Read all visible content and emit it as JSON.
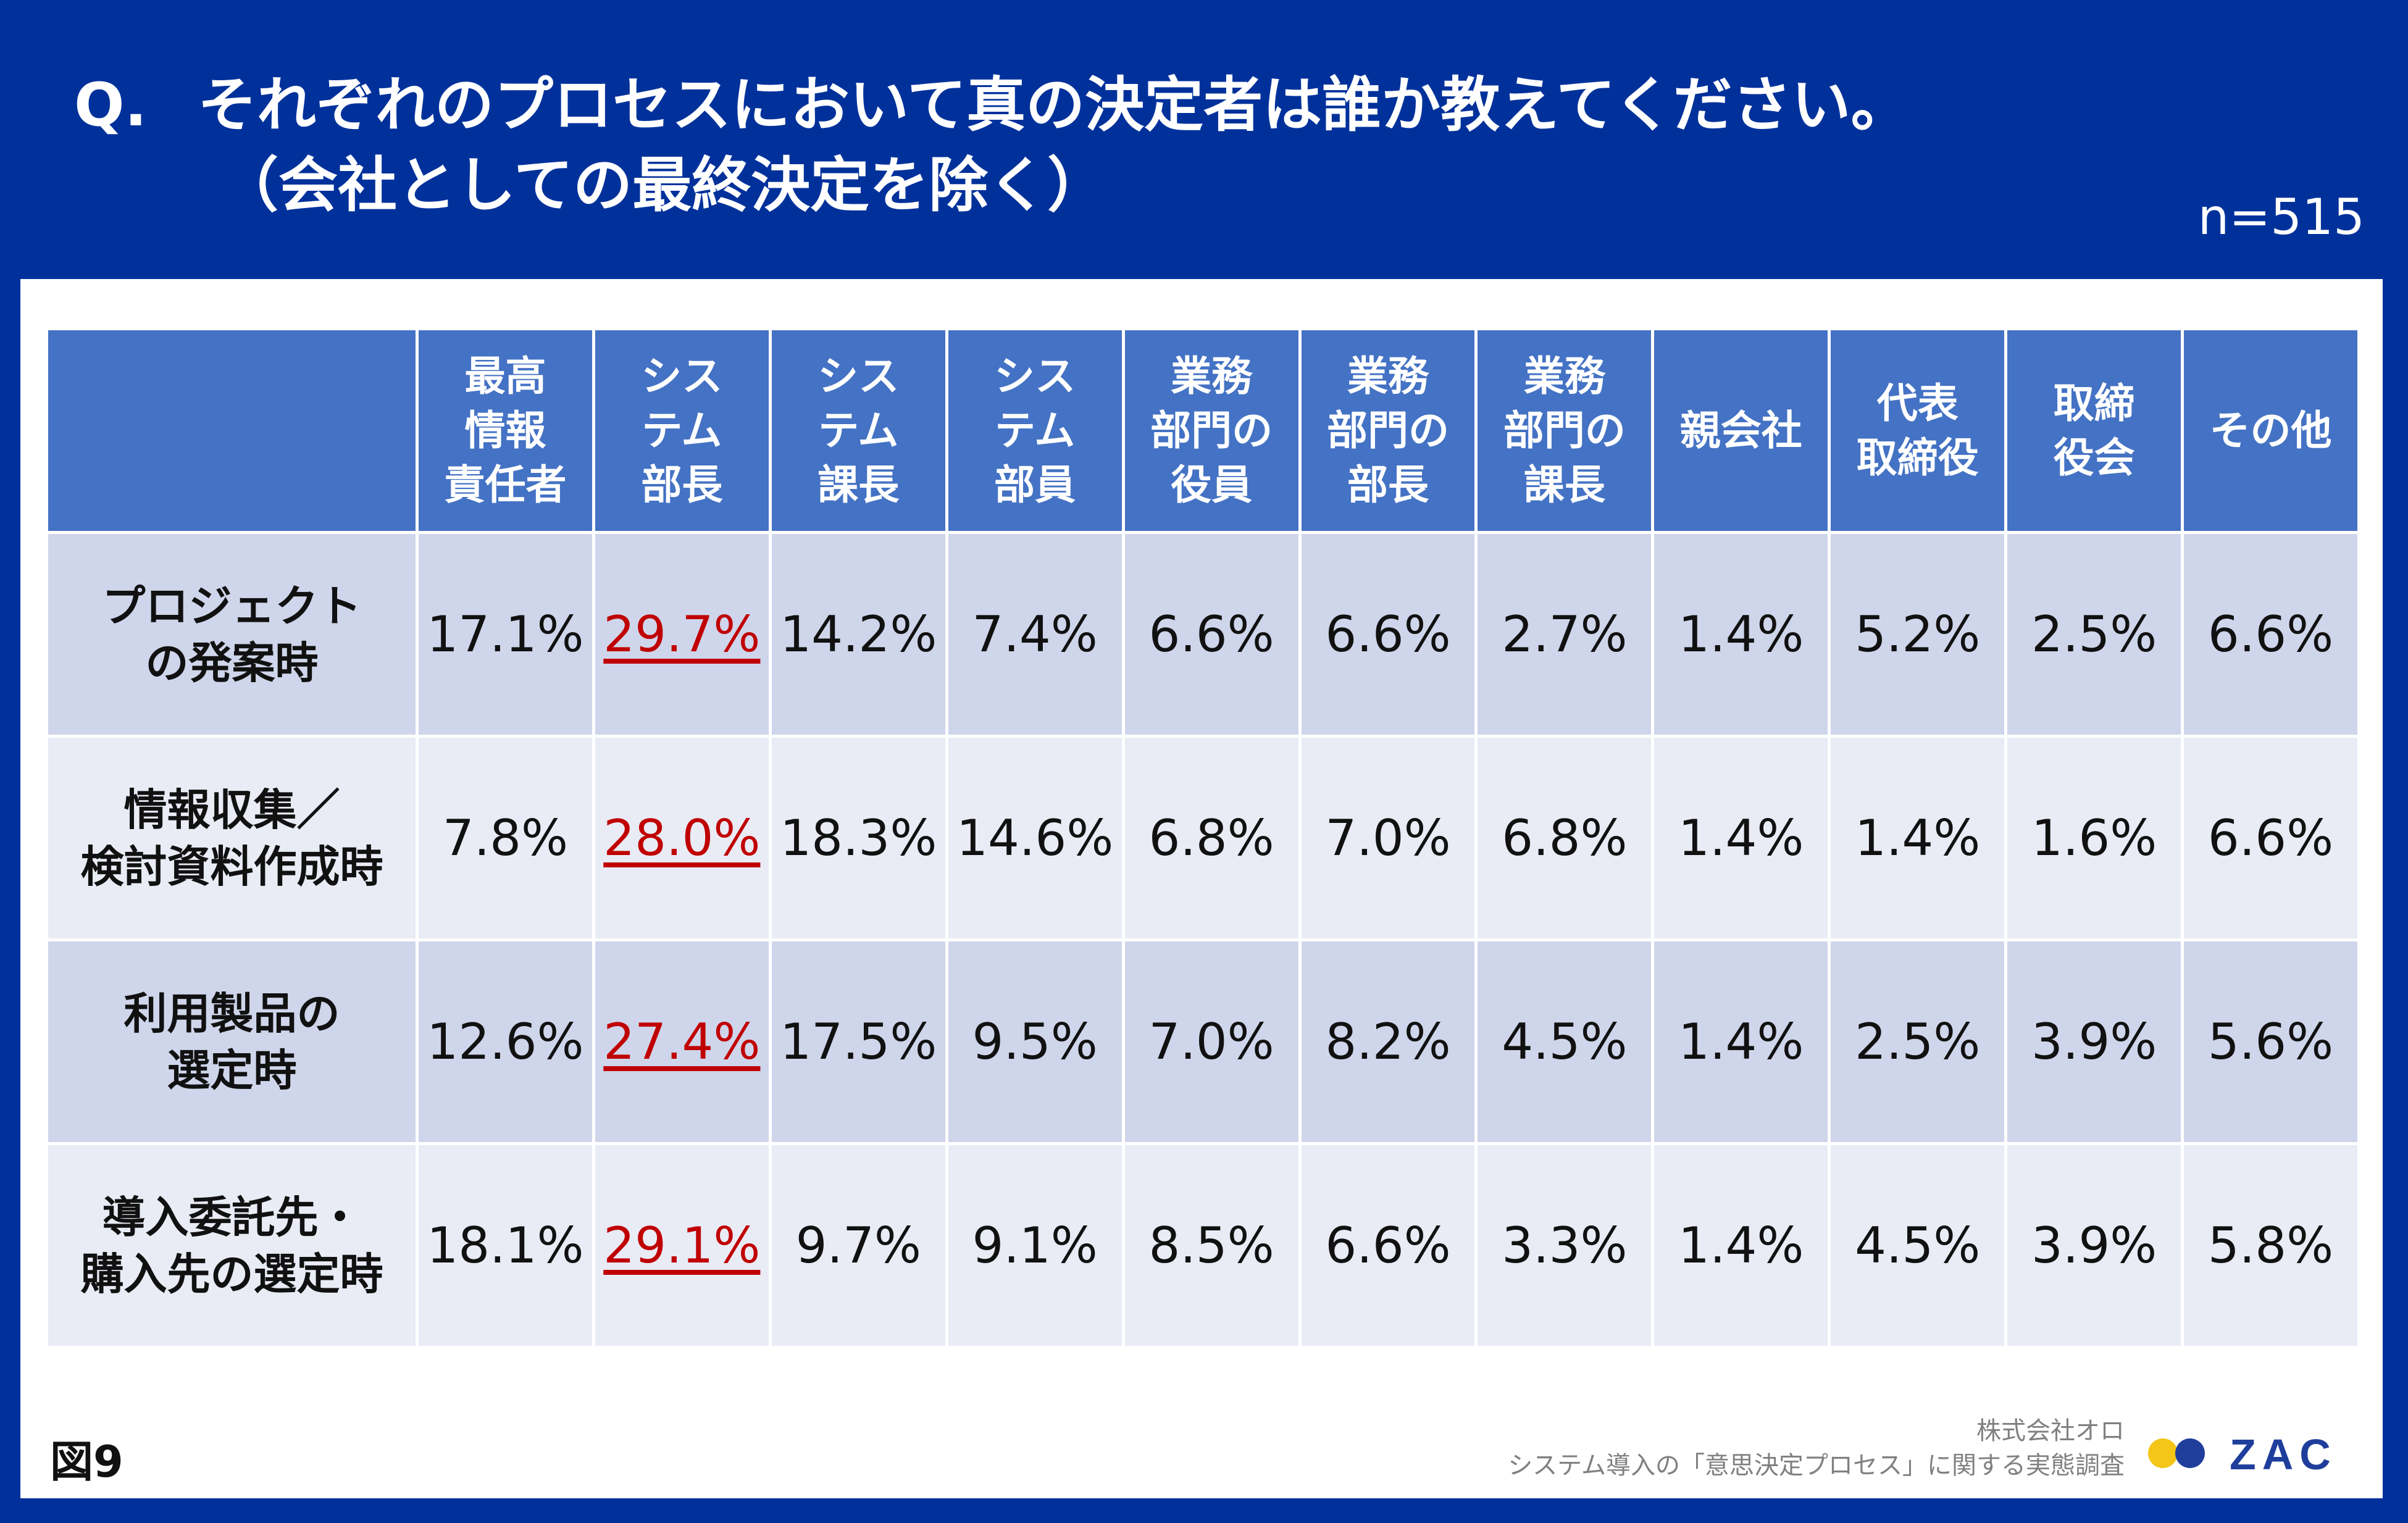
{
  "question": {
    "prefix": "Q.",
    "line1": "それぞれのプロセスにおいて真の決定者は誰か教えてください。",
    "line2": "（会社としての最終決定を除く）"
  },
  "sample_size": "n=515",
  "table": {
    "columns": [
      "最高\n情報\n責任者",
      "シス\nテム\n部長",
      "シス\nテム\n課長",
      "シス\nテム\n部員",
      "業務\n部門の\n役員",
      "業務\n部門の\n部長",
      "業務\n部門の\n課長",
      "親会社",
      "代表\n取締役",
      "取締\n役会",
      "その他"
    ],
    "highlight_column": 1,
    "highlight_color": "#c00000",
    "rows": [
      {
        "label": "プロジェクト\nの発案時",
        "values": [
          "17.1%",
          "29.7%",
          "14.2%",
          "7.4%",
          "6.6%",
          "6.6%",
          "2.7%",
          "1.4%",
          "5.2%",
          "2.5%",
          "6.6%"
        ]
      },
      {
        "label": "情報収集／\n検討資料作成時",
        "values": [
          "7.8%",
          "28.0%",
          "18.3%",
          "14.6%",
          "6.8%",
          "7.0%",
          "6.8%",
          "1.4%",
          "1.4%",
          "1.6%",
          "6.6%"
        ]
      },
      {
        "label": "利用製品の\n選定時",
        "values": [
          "12.6%",
          "27.4%",
          "17.5%",
          "9.5%",
          "7.0%",
          "8.2%",
          "4.5%",
          "1.4%",
          "2.5%",
          "3.9%",
          "5.6%"
        ]
      },
      {
        "label": "導入委託先・\n購入先の選定時",
        "values": [
          "18.1%",
          "29.1%",
          "9.7%",
          "9.1%",
          "8.5%",
          "6.6%",
          "3.3%",
          "1.4%",
          "4.5%",
          "3.9%",
          "5.8%"
        ]
      }
    ]
  },
  "figure_label": "図9",
  "credit": {
    "company": "株式会社オロ",
    "survey": "システム導入の「意思決定プロセス」に関する実態調査"
  },
  "logo": {
    "text": "ZAC",
    "name": "zac-logo"
  },
  "colors": {
    "background": "#00319b",
    "header": "#4472c4",
    "row_dark": "#cfd5ea",
    "row_light": "#e9ebf5"
  }
}
